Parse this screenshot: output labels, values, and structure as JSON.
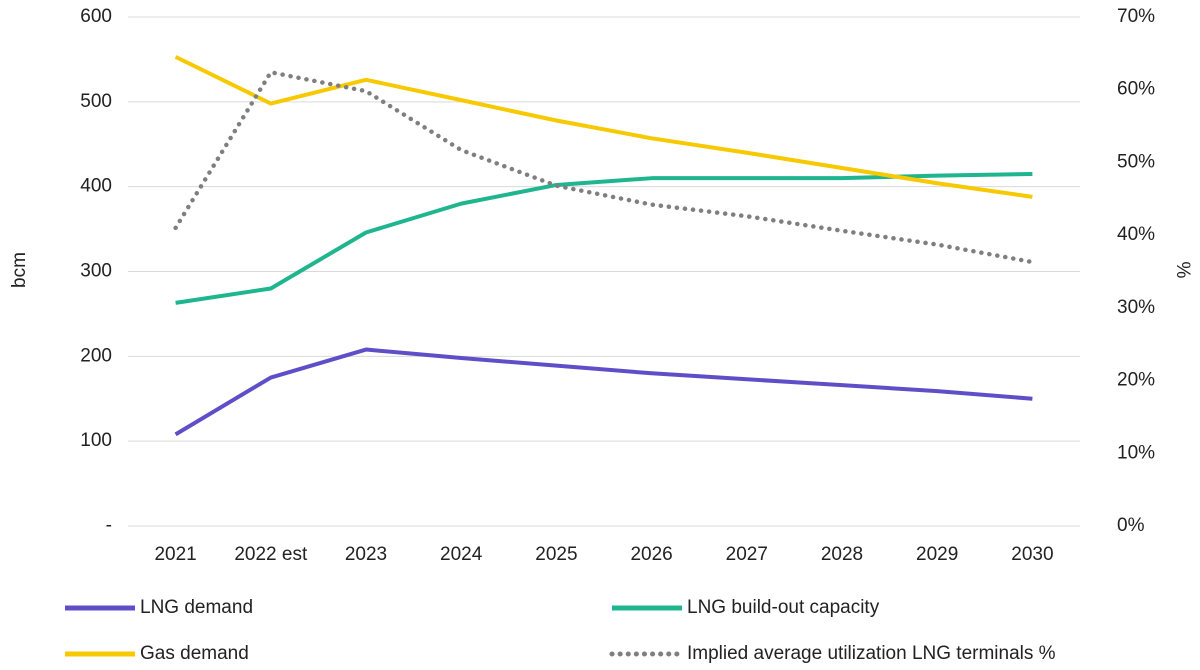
{
  "chart_data": {
    "type": "line",
    "y_label": "bcm",
    "y2_label": "%",
    "categories": [
      "2021",
      "2022 est",
      "2023",
      "2024",
      "2025",
      "2026",
      "2027",
      "2028",
      "2029",
      "2030"
    ],
    "series": [
      {
        "name": "LNG demand",
        "color": "#5e4fc8",
        "values": [
          108,
          175,
          208,
          198,
          189,
          180,
          173,
          166,
          159,
          150
        ]
      },
      {
        "name": "LNG build-out capacity",
        "color": "#1fb58f",
        "values": [
          263,
          280,
          346,
          380,
          402,
          410,
          410,
          410,
          413,
          415
        ]
      },
      {
        "name": "Gas demand",
        "color": "#f7c900",
        "values": [
          553,
          498,
          526,
          502,
          478,
          457,
          440,
          422,
          404,
          388
        ]
      },
      {
        "name": "Implied average utilization LNG terminals %",
        "color": "#7f7f7f",
        "dashed": true,
        "axis": "y2",
        "values": [
          41,
          62.4,
          59.8,
          51.7,
          46.8,
          44.2,
          42.6,
          40.6,
          38.7,
          36.3
        ]
      }
    ],
    "ylim": [
      0,
      600
    ],
    "yticks": [
      {
        "value": 0,
        "label": "-"
      },
      100,
      200,
      300,
      400,
      500,
      600
    ],
    "y2lim": [
      0,
      70
    ],
    "y2ticks": [
      {
        "value": 0,
        "label": "0%"
      },
      {
        "value": 10,
        "label": "10%"
      },
      {
        "value": 20,
        "label": "20%"
      },
      {
        "value": 30,
        "label": "30%"
      },
      {
        "value": 40,
        "label": "40%"
      },
      {
        "value": 50,
        "label": "50%"
      },
      {
        "value": 60,
        "label": "60%"
      },
      {
        "value": 70,
        "label": "70%"
      }
    ],
    "grid": true
  }
}
